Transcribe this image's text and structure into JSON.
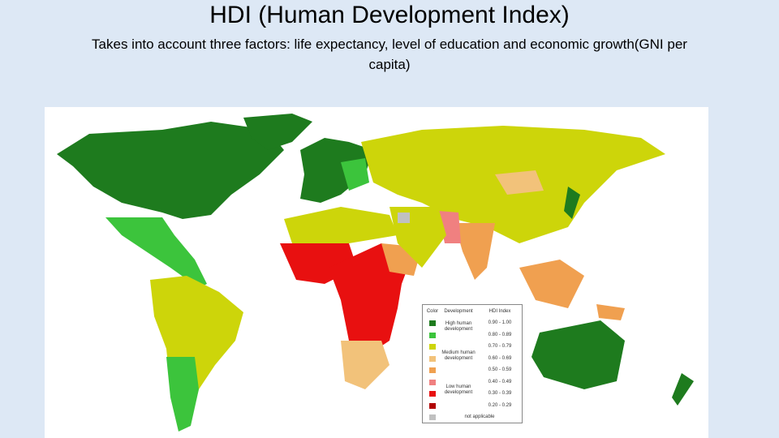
{
  "header": {
    "title": "HDI (Human Development Index)",
    "subtitle": "Takes into account three factors: life expectancy, level of education and economic growth(GNI per capita)"
  },
  "legend": {
    "headers": [
      "Color",
      "Development",
      "HDI Index"
    ],
    "groups": [
      "High human development",
      "Medium human development",
      "Low human development",
      "not applicable"
    ],
    "ranges": [
      "0.90 - 1.00",
      "0.80 - 0.89",
      "0.70 - 0.79",
      "0.60 - 0.69",
      "0.50 - 0.59",
      "0.40 - 0.49",
      "0.30 - 0.39",
      "0.20 - 0.29"
    ]
  }
}
